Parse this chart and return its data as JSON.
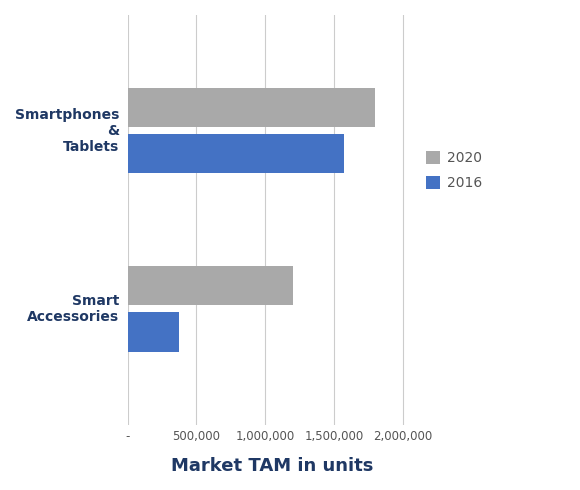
{
  "categories": [
    "Smart\nAccessories",
    "Smartphones\n&\nTablets"
  ],
  "values_2020": [
    1200000,
    1800000
  ],
  "values_2016": [
    375000,
    1575000
  ],
  "color_2020": "#A9A9A9",
  "color_2016": "#4472C4",
  "xlabel": "Market TAM in units",
  "xlabel_color": "#1F3864",
  "legend_labels": [
    "2020",
    "2016"
  ],
  "xlim": [
    0,
    2100000
  ],
  "xticks": [
    0,
    500000,
    1000000,
    1500000,
    2000000
  ],
  "xtick_labels": [
    "-",
    "500,000",
    "1,000,000",
    "1,500,000",
    "2,000,000"
  ],
  "background_color": "#FFFFFF",
  "bar_height": 0.22,
  "category_label_color": "#1F3864",
  "category_label_fontsize": 10,
  "xlabel_fontsize": 13,
  "legend_fontsize": 10,
  "legend_color": "#555555"
}
